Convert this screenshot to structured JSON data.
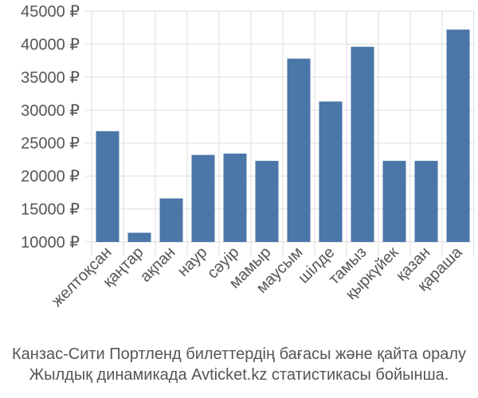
{
  "chart_data": {
    "type": "bar",
    "categories": [
      "желтоқсан",
      "қаңтар",
      "ақпан",
      "наур",
      "сәуір",
      "мамыр",
      "маусым",
      "шілде",
      "тамыз",
      "қыркүйек",
      "қазан",
      "қараша"
    ],
    "values": [
      26800,
      11400,
      16600,
      23200,
      23400,
      22300,
      37800,
      31300,
      39600,
      22300,
      22300,
      42200
    ],
    "yticks": [
      "10000 ₽",
      "15000 ₽",
      "20000 ₽",
      "25000 ₽",
      "30000 ₽",
      "35000 ₽",
      "40000 ₽",
      "45000 ₽"
    ],
    "ylim": [
      10000,
      45000
    ],
    "grid": true,
    "bar_color": "#4a76a8"
  },
  "caption": {
    "line1": "Канзас-Сити Портленд билеттердің бағасы және қайта оралу",
    "line2": "Жылдық динамикада Avticket.kz статистикасы бойынша."
  }
}
